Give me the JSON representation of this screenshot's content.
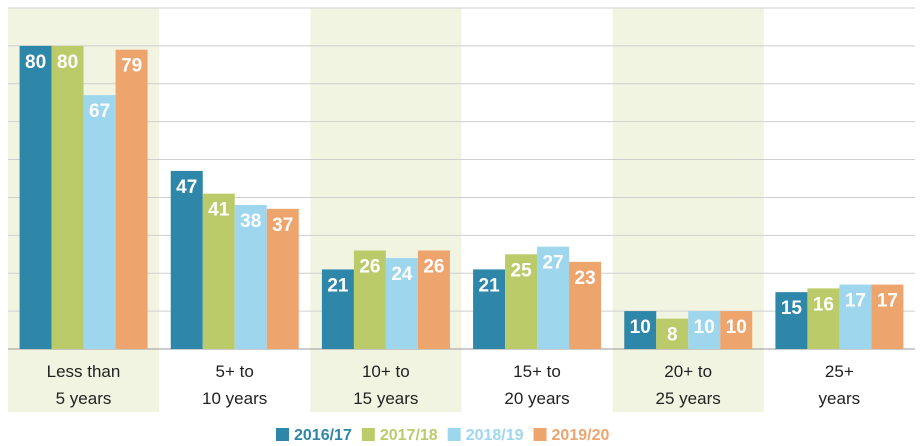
{
  "chart_data": {
    "type": "bar",
    "categories": [
      "Less than\n5 years",
      "5+ to\n10 years",
      "10+ to\n15 years",
      "15+ to\n20 years",
      "20+ to\n25 years",
      "25+\nyears"
    ],
    "series": [
      {
        "name": "2016/17",
        "color": "#2e86a8",
        "values": [
          80,
          47,
          21,
          21,
          10,
          15
        ]
      },
      {
        "name": "2017/18",
        "color": "#bccb6a",
        "values": [
          80,
          41,
          26,
          25,
          8,
          16
        ]
      },
      {
        "name": "2018/19",
        "color": "#9ed6ee",
        "values": [
          67,
          38,
          24,
          27,
          10,
          17
        ]
      },
      {
        "name": "2019/20",
        "color": "#eea46d",
        "values": [
          79,
          37,
          26,
          23,
          10,
          17
        ]
      }
    ],
    "ylim": [
      0,
      90
    ],
    "yticks": [
      0,
      10,
      20,
      30,
      40,
      50,
      60,
      70,
      80,
      90
    ],
    "grid": true,
    "legend": "bottom"
  }
}
